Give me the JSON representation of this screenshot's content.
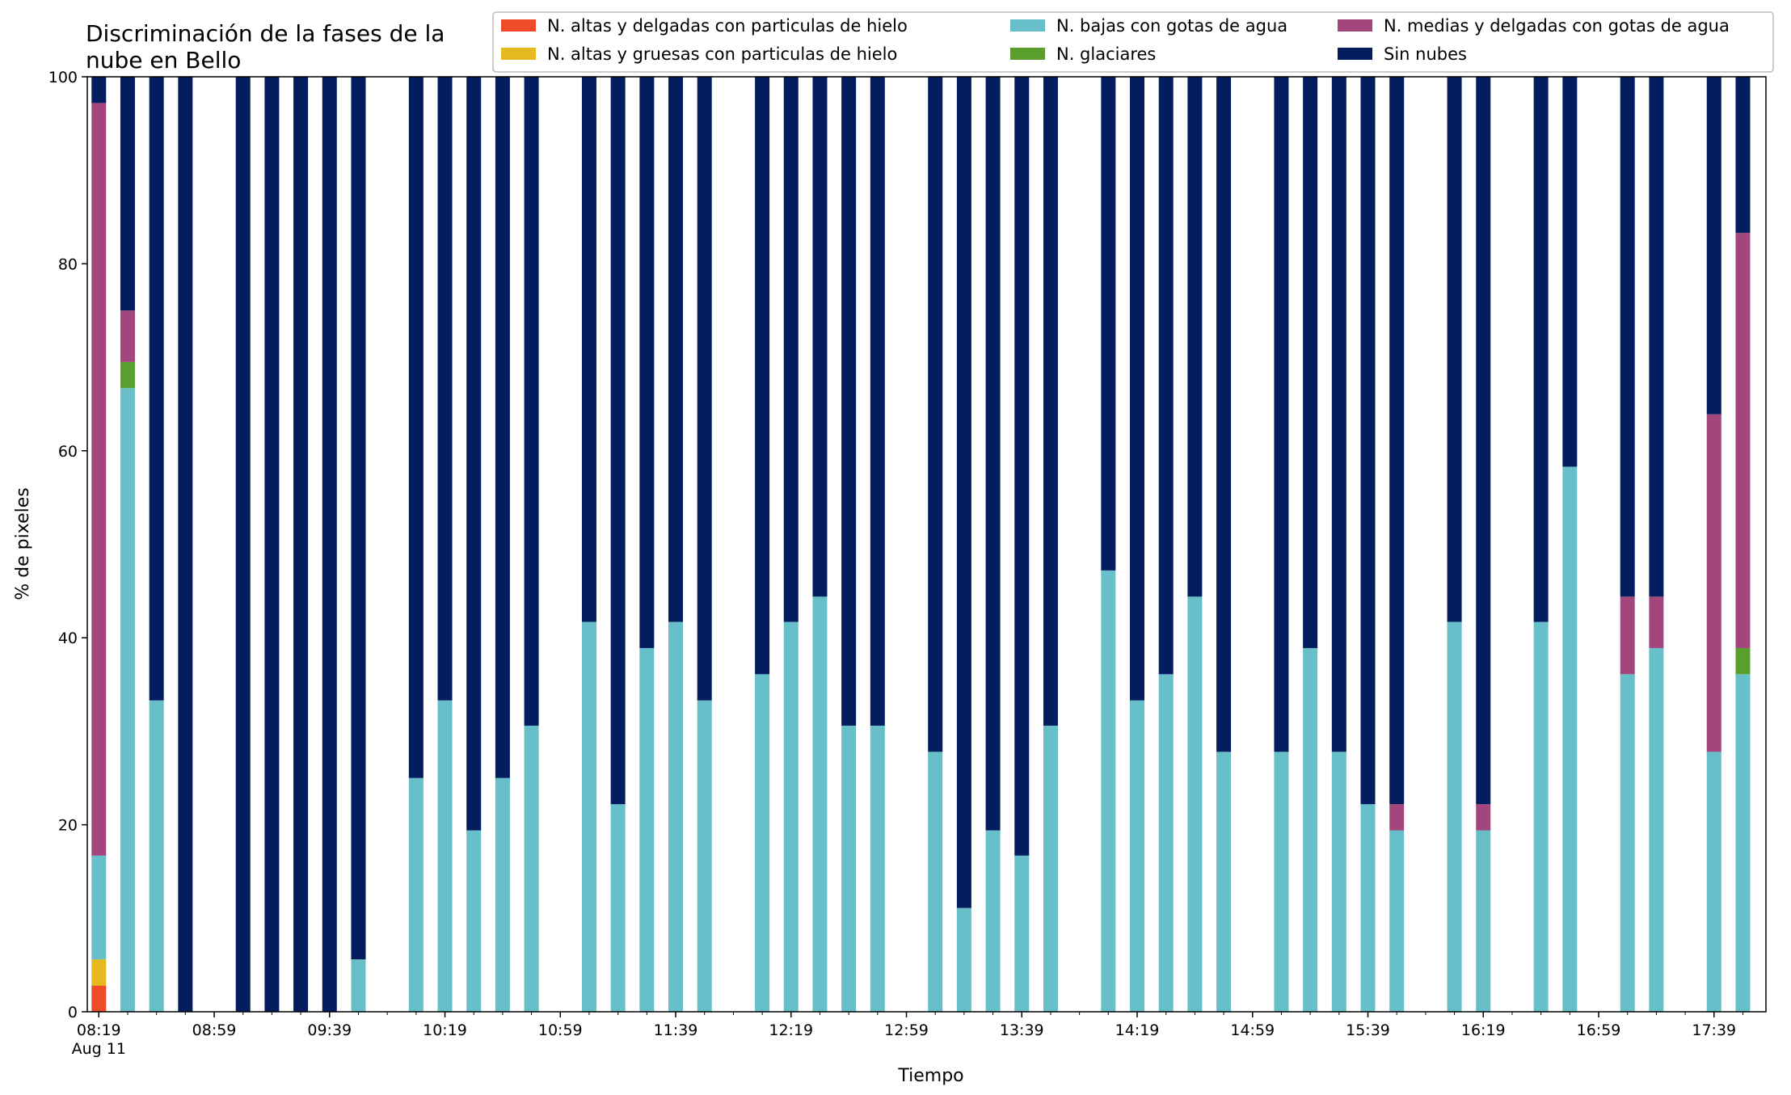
{
  "chart_data": {
    "type": "bar",
    "stacked": true,
    "title_lines": [
      "Discriminación de la fases de la",
      "nube en Bello"
    ],
    "xlabel": "Tiempo",
    "ylabel": "% de pixeles",
    "ylim": [
      0,
      100
    ],
    "yticks": [
      0,
      20,
      40,
      60,
      80,
      100
    ],
    "xlim": [
      "2021-08-11 08:15",
      "2021-08-11 17:57"
    ],
    "x_tick_labels": [
      "08:19",
      "08:59",
      "09:39",
      "10:19",
      "10:59",
      "11:39",
      "12:19",
      "12:59",
      "13:39",
      "14:19",
      "14:59",
      "15:39",
      "16:19",
      "16:59",
      "17:39"
    ],
    "x_tick_sublabel": "Aug 11",
    "legend_position": "top-right",
    "series": [
      {
        "name": "N. altas y delgadas con particulas de hielo",
        "color": "#ee4b2b"
      },
      {
        "name": "N. altas y gruesas con particulas de hielo",
        "color": "#e6b91e"
      },
      {
        "name": "N. bajas con gotas de agua",
        "color": "#67bfca"
      },
      {
        "name": "N. glaciares",
        "color": "#5a9e2e"
      },
      {
        "name": "N. medias y delgadas con gotas de agua",
        "color": "#a2467c"
      },
      {
        "name": "Sin nubes",
        "color": "#031d5e"
      }
    ],
    "bars": [
      {
        "time": "08:19",
        "values": [
          2.8,
          2.8,
          11.1,
          0,
          80.5,
          2.8
        ]
      },
      {
        "time": "08:29",
        "values": [
          0,
          0,
          66.7,
          2.8,
          5.5,
          25.0
        ]
      },
      {
        "time": "08:39",
        "values": [
          0,
          0,
          33.3,
          0,
          0,
          66.7
        ]
      },
      {
        "time": "08:49",
        "values": [
          0,
          0,
          0,
          0,
          0,
          100
        ]
      },
      {
        "time": "09:09",
        "values": [
          0,
          0,
          0,
          0,
          0,
          100
        ]
      },
      {
        "time": "09:19",
        "values": [
          0,
          0,
          0,
          0,
          0,
          100
        ]
      },
      {
        "time": "09:29",
        "values": [
          0,
          0,
          0,
          0,
          0,
          100
        ]
      },
      {
        "time": "09:39",
        "values": [
          0,
          0,
          0,
          0,
          0,
          100
        ]
      },
      {
        "time": "09:49",
        "values": [
          0,
          0,
          5.6,
          0,
          0,
          94.4
        ]
      },
      {
        "time": "10:09",
        "values": [
          0,
          0,
          25.0,
          0,
          0,
          75.0
        ]
      },
      {
        "time": "10:19",
        "values": [
          0,
          0,
          33.3,
          0,
          0,
          66.7
        ]
      },
      {
        "time": "10:29",
        "values": [
          0,
          0,
          19.4,
          0,
          0,
          80.6
        ]
      },
      {
        "time": "10:39",
        "values": [
          0,
          0,
          25.0,
          0,
          0,
          75.0
        ]
      },
      {
        "time": "10:49",
        "values": [
          0,
          0,
          30.6,
          0,
          0,
          69.4
        ]
      },
      {
        "time": "11:09",
        "values": [
          0,
          0,
          41.7,
          0,
          0,
          58.3
        ]
      },
      {
        "time": "11:19",
        "values": [
          0,
          0,
          22.2,
          0,
          0,
          77.8
        ]
      },
      {
        "time": "11:29",
        "values": [
          0,
          0,
          38.9,
          0,
          0,
          61.1
        ]
      },
      {
        "time": "11:39",
        "values": [
          0,
          0,
          41.7,
          0,
          0,
          58.3
        ]
      },
      {
        "time": "11:49",
        "values": [
          0,
          0,
          33.3,
          0,
          0,
          66.7
        ]
      },
      {
        "time": "12:09",
        "values": [
          0,
          0,
          36.1,
          0,
          0,
          63.9
        ]
      },
      {
        "time": "12:19",
        "values": [
          0,
          0,
          41.7,
          0,
          0,
          58.3
        ]
      },
      {
        "time": "12:29",
        "values": [
          0,
          0,
          44.4,
          0,
          0,
          55.6
        ]
      },
      {
        "time": "12:39",
        "values": [
          0,
          0,
          30.6,
          0,
          0,
          69.4
        ]
      },
      {
        "time": "12:49",
        "values": [
          0,
          0,
          30.6,
          0,
          0,
          69.4
        ]
      },
      {
        "time": "13:09",
        "values": [
          0,
          0,
          27.8,
          0,
          0,
          72.2
        ]
      },
      {
        "time": "13:19",
        "values": [
          0,
          0,
          11.1,
          0,
          0,
          88.9
        ]
      },
      {
        "time": "13:29",
        "values": [
          0,
          0,
          19.4,
          0,
          0,
          80.6
        ]
      },
      {
        "time": "13:39",
        "values": [
          0,
          0,
          16.7,
          0,
          0,
          83.3
        ]
      },
      {
        "time": "13:49",
        "values": [
          0,
          0,
          30.6,
          0,
          0,
          69.4
        ]
      },
      {
        "time": "14:09",
        "values": [
          0,
          0,
          47.2,
          0,
          0,
          52.8
        ]
      },
      {
        "time": "14:19",
        "values": [
          0,
          0,
          33.3,
          0,
          0,
          66.7
        ]
      },
      {
        "time": "14:29",
        "values": [
          0,
          0,
          36.1,
          0,
          0,
          63.9
        ]
      },
      {
        "time": "14:39",
        "values": [
          0,
          0,
          44.4,
          0,
          0,
          55.6
        ]
      },
      {
        "time": "14:49",
        "values": [
          0,
          0,
          27.8,
          0,
          0,
          72.2
        ]
      },
      {
        "time": "15:09",
        "values": [
          0,
          0,
          27.8,
          0,
          0,
          72.2
        ]
      },
      {
        "time": "15:19",
        "values": [
          0,
          0,
          38.9,
          0,
          0,
          61.1
        ]
      },
      {
        "time": "15:29",
        "values": [
          0,
          0,
          27.8,
          0,
          0,
          72.2
        ]
      },
      {
        "time": "15:39",
        "values": [
          0,
          0,
          22.2,
          0,
          0,
          77.8
        ]
      },
      {
        "time": "15:49",
        "values": [
          0,
          0,
          19.4,
          0,
          2.8,
          77.8
        ]
      },
      {
        "time": "16:09",
        "values": [
          0,
          0,
          41.7,
          0,
          0,
          58.3
        ]
      },
      {
        "time": "16:19",
        "values": [
          0,
          0,
          19.4,
          0,
          2.8,
          77.8
        ]
      },
      {
        "time": "16:39",
        "values": [
          0,
          0,
          41.7,
          0,
          0,
          58.3
        ]
      },
      {
        "time": "16:49",
        "values": [
          0,
          0,
          58.3,
          0,
          0,
          41.7
        ]
      },
      {
        "time": "17:09",
        "values": [
          0,
          0,
          36.1,
          0,
          8.3,
          55.6
        ]
      },
      {
        "time": "17:19",
        "values": [
          0,
          0,
          38.9,
          0,
          5.5,
          55.6
        ]
      },
      {
        "time": "17:39",
        "values": [
          0,
          0,
          27.8,
          0,
          36.1,
          36.1
        ]
      },
      {
        "time": "17:49",
        "values": [
          0,
          0,
          36.1,
          2.8,
          44.4,
          16.7
        ]
      }
    ]
  }
}
